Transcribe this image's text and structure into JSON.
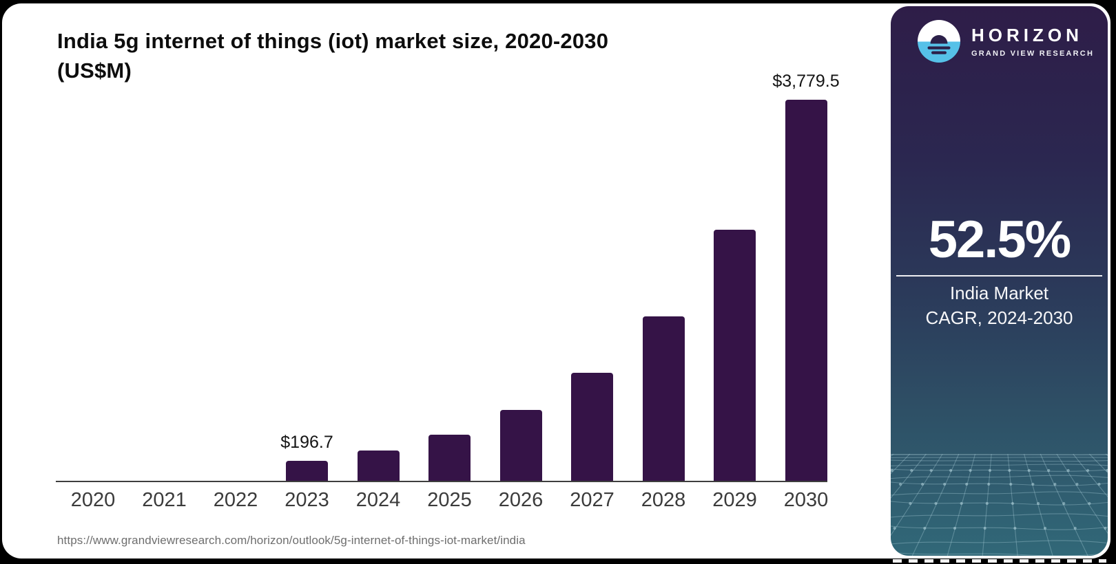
{
  "title": {
    "line1": "India 5g internet of things (iot) market size, 2020-2030",
    "line2": "(US$M)"
  },
  "source_url": "https://www.grandviewresearch.com/horizon/outlook/5g-internet-of-things-iot-market/india",
  "side_panel": {
    "brand": "HORIZON",
    "brand_subtitle": "GRAND VIEW RESEARCH",
    "stat_value": "52.5%",
    "stat_label_line1": "India Market",
    "stat_label_line2": "CAGR, 2024-2030",
    "icons": {
      "logo": "horizon-sun-circle-icon"
    },
    "colors": {
      "logo_blue": "#56c1e8",
      "logo_dark": "#2c2049",
      "panel_top": "#2e1d48",
      "panel_bottom": "#316878",
      "mesh_line": "#bfe0e8"
    }
  },
  "chart_data": {
    "type": "bar",
    "title": "India 5g internet of things (iot) market size, 2020-2030 (US$M)",
    "categories": [
      "2020",
      "2021",
      "2022",
      "2023",
      "2024",
      "2025",
      "2026",
      "2027",
      "2028",
      "2029",
      "2030"
    ],
    "values": [
      0,
      0,
      0,
      196.7,
      301.6,
      459.9,
      701.4,
      1069.6,
      1631.1,
      2487.5,
      3779.5
    ],
    "value_labels": [
      "",
      "",
      "",
      "$196.7",
      "",
      "",
      "",
      "",
      "",
      "",
      "$3,779.5"
    ],
    "xlabel": "",
    "ylabel": "",
    "ylim": [
      0,
      3779.5
    ],
    "grid": false,
    "legend": false,
    "bar_color": "#351347",
    "axis_color": "#3e3e3e"
  }
}
